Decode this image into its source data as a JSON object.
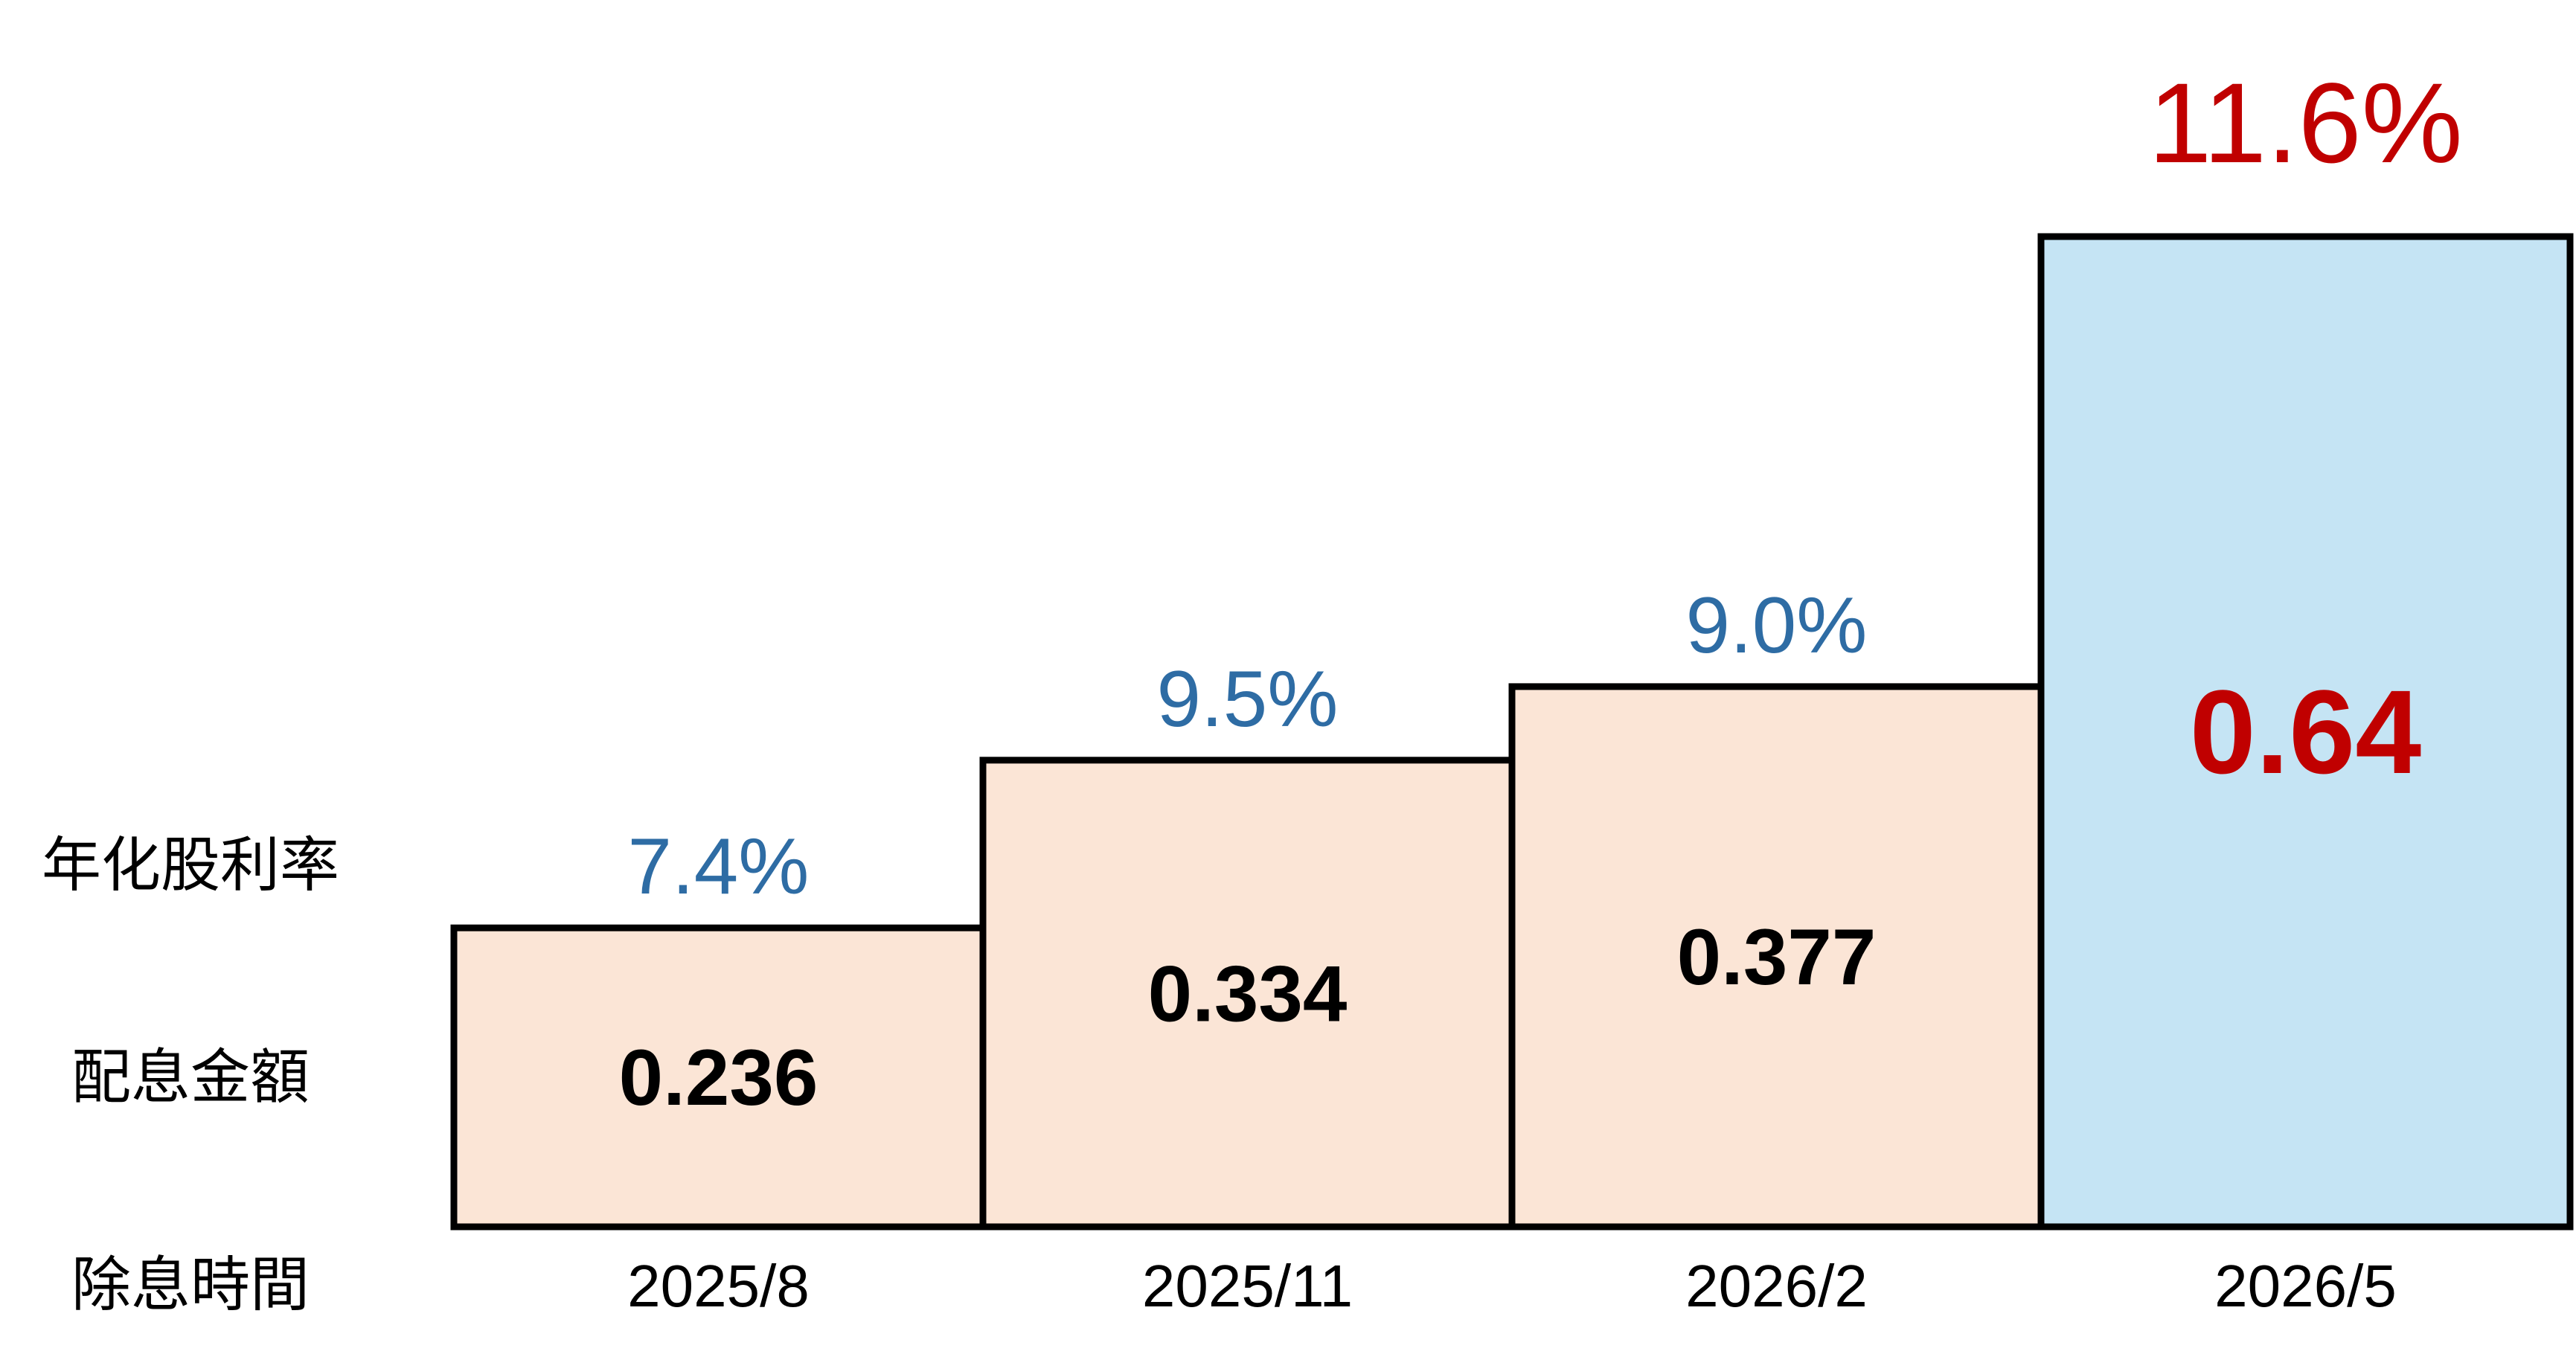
{
  "colors": {
    "bar_fill": [
      "#FBE5D6",
      "#FBE5D6",
      "#FBE5D6",
      "#C5E4F4"
    ],
    "amount_text": [
      "#000000",
      "#000000",
      "#000000",
      "#C00000"
    ],
    "yield_text": [
      "#2E6CA4",
      "#2E6CA4",
      "#2E6CA4",
      "#C00000"
    ],
    "bar_border": "#000000",
    "label_text": "#000000"
  },
  "chart_data": {
    "type": "bar",
    "xlabel": "除息時間",
    "categories": [
      "2025/8",
      "2025/11",
      "2026/2",
      "2026/5"
    ],
    "series": [
      {
        "name": "配息金額",
        "values": [
          0.236,
          0.334,
          0.377,
          0.64
        ]
      },
      {
        "name": "年化股利率",
        "values": [
          7.4,
          9.5,
          9.0,
          11.6
        ],
        "labels": [
          "7.4%",
          "9.5%",
          "9.0%",
          "11.6%"
        ]
      }
    ],
    "highlight": [
      false,
      false,
      false,
      true
    ],
    "grid": false
  }
}
